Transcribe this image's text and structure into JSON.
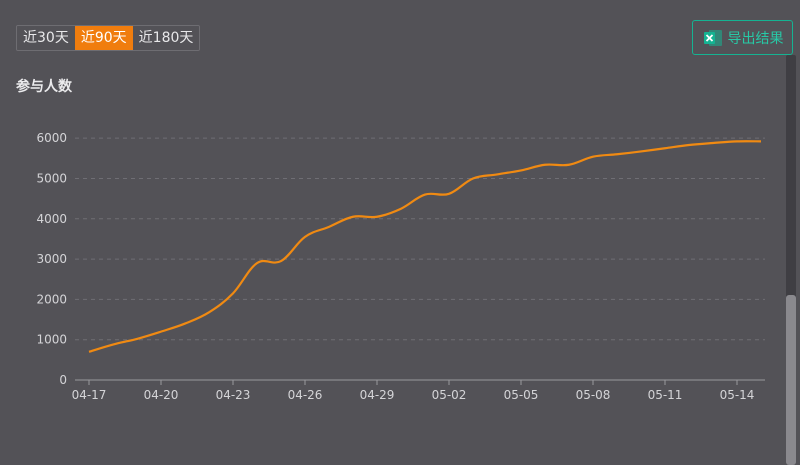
{
  "range_tabs": [
    {
      "label": "近30天",
      "active": false
    },
    {
      "label": "近90天",
      "active": true
    },
    {
      "label": "近180天",
      "active": false
    }
  ],
  "export": {
    "label": "导出结果",
    "icon": "excel-icon"
  },
  "colors": {
    "accent": "#f07d0e",
    "line": "#f08a12",
    "export": "#15b392",
    "background": "#535257"
  },
  "chart_data": {
    "type": "line",
    "title": "参与人数",
    "xlabel": "",
    "ylabel": "",
    "x_ticks": [
      "04-17",
      "04-20",
      "04-23",
      "04-26",
      "04-29",
      "05-02",
      "05-05",
      "05-08",
      "05-11",
      "05-14"
    ],
    "y_ticks": [
      0,
      1000,
      2000,
      3000,
      4000,
      5000,
      6000
    ],
    "ylim": [
      0,
      6500
    ],
    "grid": true,
    "series": [
      {
        "x": [
          "04-17",
          "04-18",
          "04-19",
          "04-20",
          "04-21",
          "04-22",
          "04-23",
          "04-24",
          "04-25",
          "04-26",
          "04-27",
          "04-28",
          "04-29",
          "04-30",
          "05-01",
          "05-02",
          "05-03",
          "05-04",
          "05-05",
          "05-06",
          "05-07",
          "05-08",
          "05-09",
          "05-10",
          "05-11",
          "05-12",
          "05-13",
          "05-14",
          "05-15"
        ],
        "values": [
          700,
          880,
          1020,
          1200,
          1400,
          1680,
          2150,
          2900,
          2950,
          3550,
          3800,
          4050,
          4050,
          4250,
          4600,
          4620,
          5000,
          5100,
          5200,
          5340,
          5340,
          5540,
          5600,
          5670,
          5750,
          5830,
          5880,
          5920,
          5920
        ]
      }
    ]
  }
}
